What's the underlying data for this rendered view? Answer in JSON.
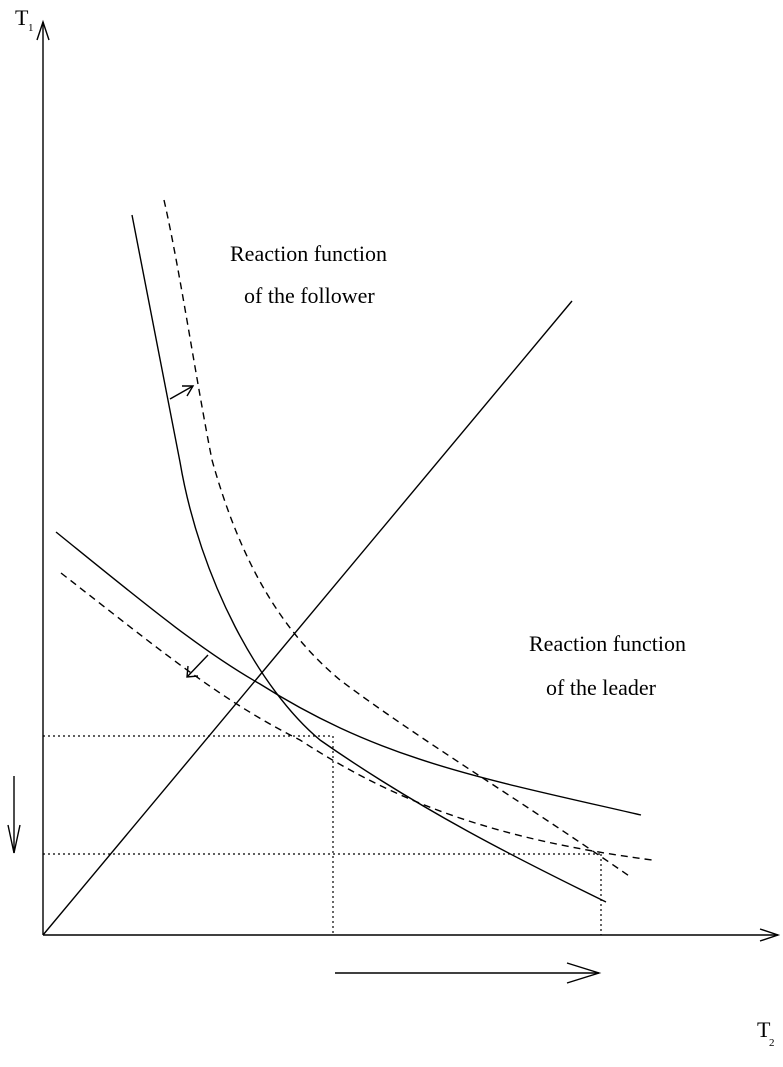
{
  "axes": {
    "y_label": "T",
    "y_subscript": "1",
    "x_label": "T",
    "x_subscript": "2"
  },
  "annotations": {
    "follower_line1": "Reaction function",
    "follower_line2": "of the follower",
    "leader_line1": "Reaction function",
    "leader_line2": "of the leader"
  }
}
